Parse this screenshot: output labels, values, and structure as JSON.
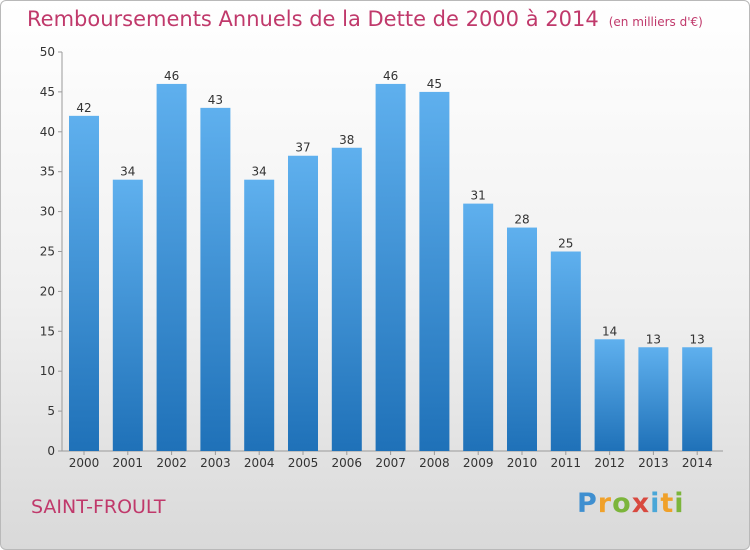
{
  "header": {
    "title": "Remboursements Annuels de la Dette de 2000 à 2014",
    "unit": "(en milliers d'€)"
  },
  "footer": {
    "town": "SAINT-FROULT",
    "logo": "Proxiti"
  },
  "colors": {
    "title": "#c0396b",
    "bar_top": "#5fb0ee",
    "bar_bottom": "#1f71b8"
  },
  "chart_data": {
    "type": "bar",
    "title": "Remboursements Annuels de la Dette de 2000 à 2014",
    "subtitle": "(en milliers d'€)",
    "xlabel": "",
    "ylabel": "",
    "categories": [
      "2000",
      "2001",
      "2002",
      "2003",
      "2004",
      "2005",
      "2006",
      "2007",
      "2008",
      "2009",
      "2010",
      "2011",
      "2012",
      "2013",
      "2014"
    ],
    "values": [
      42,
      34,
      46,
      43,
      34,
      37,
      38,
      46,
      45,
      31,
      28,
      25,
      14,
      13,
      13
    ],
    "ylim": [
      0,
      50
    ],
    "yticks": [
      0,
      5,
      10,
      15,
      20,
      25,
      30,
      35,
      40,
      45,
      50
    ],
    "grid": false,
    "data_labels": true
  }
}
